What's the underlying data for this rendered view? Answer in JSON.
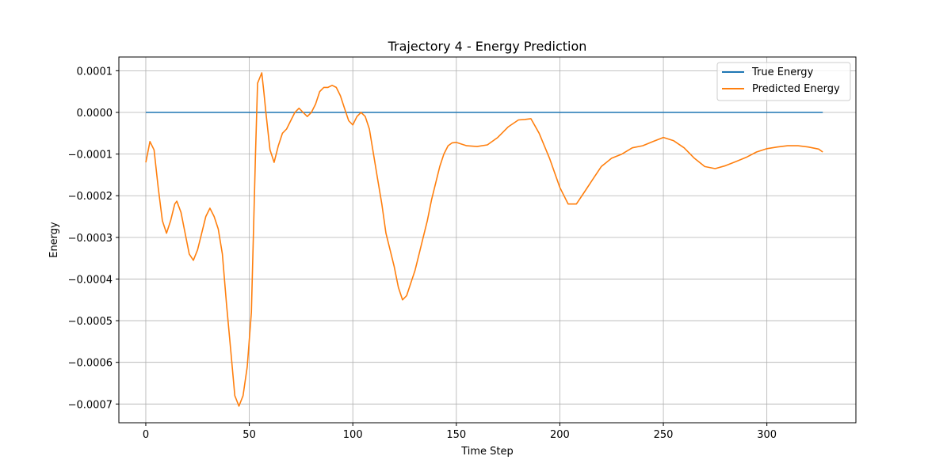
{
  "chart_data": {
    "type": "line",
    "title": "Trajectory 4 - Energy Prediction",
    "xlabel": "Time Step",
    "ylabel": "Energy",
    "xlim": [
      -13,
      343
    ],
    "ylim": [
      -0.000745,
      0.000133
    ],
    "xticks": [
      0,
      50,
      100,
      150,
      200,
      250,
      300
    ],
    "xtick_labels": [
      "0",
      "50",
      "100",
      "150",
      "200",
      "250",
      "300"
    ],
    "yticks": [
      0.0001,
      0.0,
      -0.0001,
      -0.0002,
      -0.0003,
      -0.0004,
      -0.0005,
      -0.0006,
      -0.0007
    ],
    "ytick_labels": [
      "0.0001",
      "0.0000",
      "−0.0001",
      "−0.0002",
      "−0.0003",
      "−0.0004",
      "−0.0005",
      "−0.0006",
      "−0.0007"
    ],
    "grid": true,
    "legend_position": "upper-right",
    "series": [
      {
        "name": "True Energy",
        "color": "#1f77b4",
        "x": [
          0,
          327
        ],
        "y": [
          0.0,
          0.0
        ]
      },
      {
        "name": "Predicted Energy",
        "color": "#ff7f0e",
        "x": [
          0,
          2,
          4,
          6,
          8,
          10,
          12,
          14,
          15,
          17,
          19,
          21,
          23,
          25,
          27,
          29,
          31,
          33,
          35,
          37,
          39,
          41,
          43,
          45,
          47,
          49,
          51,
          53,
          54,
          56,
          57,
          58,
          60,
          62,
          64,
          66,
          68,
          70,
          72,
          74,
          76,
          78,
          80,
          82,
          84,
          86,
          88,
          90,
          92,
          94,
          96,
          98,
          100,
          102,
          104,
          106,
          108,
          110,
          112,
          114,
          116,
          118,
          120,
          122,
          124,
          126,
          128,
          130,
          132,
          134,
          136,
          138,
          140,
          142,
          144,
          146,
          148,
          150,
          155,
          160,
          165,
          170,
          175,
          180,
          183,
          186,
          190,
          195,
          200,
          204,
          208,
          212,
          216,
          220,
          225,
          230,
          235,
          240,
          245,
          250,
          255,
          260,
          265,
          270,
          275,
          280,
          285,
          290,
          295,
          300,
          305,
          310,
          315,
          320,
          325,
          327
        ],
        "y": [
          -0.00012,
          -7e-05,
          -9e-05,
          -0.00018,
          -0.00026,
          -0.00029,
          -0.00026,
          -0.00022,
          -0.000213,
          -0.00024,
          -0.00029,
          -0.00034,
          -0.000355,
          -0.00033,
          -0.00029,
          -0.00025,
          -0.00023,
          -0.00025,
          -0.00028,
          -0.00034,
          -0.00046,
          -0.00057,
          -0.00068,
          -0.000705,
          -0.00068,
          -0.00061,
          -0.00048,
          -0.0001,
          7e-05,
          9.5e-05,
          5e-05,
          0.0,
          -9e-05,
          -0.00012,
          -8e-05,
          -5e-05,
          -4e-05,
          -2e-05,
          0.0,
          1e-05,
          0.0,
          -1e-05,
          0.0,
          2e-05,
          5e-05,
          6e-05,
          6e-05,
          6.5e-05,
          6e-05,
          4e-05,
          1e-05,
          -2e-05,
          -3e-05,
          -1e-05,
          0.0,
          -1e-05,
          -4e-05,
          -0.0001,
          -0.00016,
          -0.00022,
          -0.00029,
          -0.00033,
          -0.00037,
          -0.00042,
          -0.00045,
          -0.00044,
          -0.00041,
          -0.00038,
          -0.00034,
          -0.0003,
          -0.00026,
          -0.00021,
          -0.00017,
          -0.00013,
          -0.0001,
          -8e-05,
          -7.3e-05,
          -7.2e-05,
          -8e-05,
          -8.2e-05,
          -7.8e-05,
          -6e-05,
          -3.5e-05,
          -1.8e-05,
          -1.7e-05,
          -1.5e-05,
          -5e-05,
          -0.00011,
          -0.00018,
          -0.00022,
          -0.00022,
          -0.00019,
          -0.00016,
          -0.00013,
          -0.00011,
          -0.0001,
          -8.5e-05,
          -8e-05,
          -7e-05,
          -6e-05,
          -6.8e-05,
          -8.5e-05,
          -0.00011,
          -0.00013,
          -0.000135,
          -0.000128,
          -0.000118,
          -0.000108,
          -9.5e-05,
          -8.7e-05,
          -8.3e-05,
          -8e-05,
          -8e-05,
          -8.3e-05,
          -8.8e-05,
          -9.5e-05
        ]
      }
    ]
  }
}
